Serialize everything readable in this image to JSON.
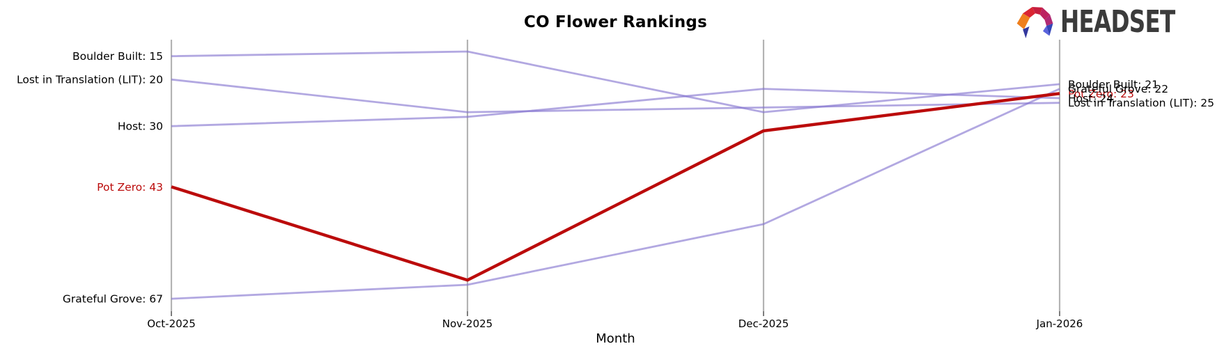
{
  "header": {
    "title": "CO Flower Rankings",
    "logo_text": "HEADSET"
  },
  "chart_data": {
    "type": "line",
    "variant": "bump-ranking-chart",
    "title": "CO Flower Rankings",
    "xlabel": "Month",
    "categories": [
      "Oct-2025",
      "Nov-2025",
      "Dec-2025",
      "Jan-2026"
    ],
    "y_meaning": "sales rank (lower number = higher position)",
    "y_axis_inverted": true,
    "grid": "vertical-month-axes",
    "legend_position": "inline-start-end-labels",
    "series": [
      {
        "name": "Boulder Built",
        "values": [
          15,
          14,
          27,
          21
        ],
        "color": "#8273cf",
        "emphasis": false,
        "start_label": "Boulder Built: 15",
        "end_label": "Boulder Built: 21"
      },
      {
        "name": "Lost in Translation (LIT)",
        "values": [
          20,
          27,
          26,
          25
        ],
        "color": "#8273cf",
        "emphasis": false,
        "start_label": "Lost in Translation (LIT): 20",
        "end_label": "Lost in Translation (LIT): 25"
      },
      {
        "name": "Host",
        "values": [
          30,
          28,
          22,
          24
        ],
        "color": "#8273cf",
        "emphasis": false,
        "start_label": "Host: 30",
        "end_label": "Host: 24"
      },
      {
        "name": "Pot Zero",
        "values": [
          43,
          63,
          31,
          23
        ],
        "color": "#bb0b0b",
        "emphasis": true,
        "start_label": "Pot Zero: 43",
        "end_label": "Pot Zero: 23"
      },
      {
        "name": "Grateful Grove",
        "values": [
          67,
          64,
          51,
          22
        ],
        "color": "#8273cf",
        "emphasis": false,
        "start_label": "Grateful Grove: 67",
        "end_label": "Grateful Grove: 22"
      }
    ],
    "axis_color": "#b3b3b3",
    "tick_color": "#262626",
    "label_text_color": "#000000"
  },
  "logo": {
    "text": "HEADSET",
    "text_color": "#3b3b3b",
    "palette": [
      "#ef7f1d",
      "#da2532",
      "#c61e3e",
      "#bc2360",
      "#b02a74",
      "#33389e",
      "#3346b8"
    ]
  }
}
